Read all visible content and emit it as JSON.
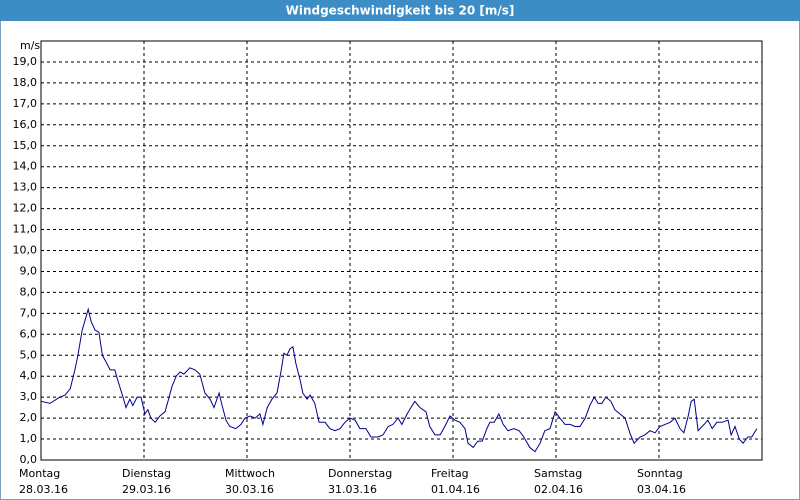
{
  "chart_data": {
    "type": "line",
    "title": "Windgeschwindigkeit bis 20 [m/s]",
    "y_label": "m/s",
    "xlim": [
      0,
      168
    ],
    "ylim": [
      0,
      20
    ],
    "xticks": [
      {
        "value": 0,
        "label": [
          "Montag",
          "28.03.16"
        ]
      },
      {
        "value": 24,
        "label": [
          "Dienstag",
          "29.03.16"
        ]
      },
      {
        "value": 48,
        "label": [
          "Mittwoch",
          "30.03.16"
        ]
      },
      {
        "value": 72,
        "label": [
          "Donnerstag",
          "31.03.16"
        ]
      },
      {
        "value": 96,
        "label": [
          "Freitag",
          "01.04.16"
        ]
      },
      {
        "value": 120,
        "label": [
          "Samstag",
          "02.04.16"
        ]
      },
      {
        "value": 144,
        "label": [
          "Sonntag",
          "03.04.16"
        ]
      }
    ],
    "yticks": [
      {
        "value": 0,
        "label": "0,0"
      },
      {
        "value": 1,
        "label": "1,0"
      },
      {
        "value": 2,
        "label": "2,0"
      },
      {
        "value": 3,
        "label": "3,0"
      },
      {
        "value": 4,
        "label": "4,0"
      },
      {
        "value": 5,
        "label": "5,0"
      },
      {
        "value": 6,
        "label": "6,0"
      },
      {
        "value": 7,
        "label": "7,0"
      },
      {
        "value": 8,
        "label": "8,0"
      },
      {
        "value": 9,
        "label": "9,0"
      },
      {
        "value": 10,
        "label": "10,0"
      },
      {
        "value": 11,
        "label": "11,0"
      },
      {
        "value": 12,
        "label": "12,0"
      },
      {
        "value": 13,
        "label": "13,0"
      },
      {
        "value": 14,
        "label": "14,0"
      },
      {
        "value": 15,
        "label": "15,0"
      },
      {
        "value": 16,
        "label": "16,0"
      },
      {
        "value": 17,
        "label": "17,0"
      },
      {
        "value": 18,
        "label": "18,0"
      },
      {
        "value": 19,
        "label": "19,0"
      }
    ],
    "grid": true,
    "color": "#00008b",
    "x": [
      0,
      2.1,
      4.4,
      5.6,
      6.8,
      7.9,
      8.6,
      9.6,
      11.0,
      11.7,
      12.6,
      13.5,
      14.3,
      15.1,
      16.1,
      17.2,
      17.9,
      19.1,
      19.8,
      20.7,
      21.4,
      22.4,
      23.3,
      24.2,
      24.9,
      25.6,
      26.6,
      27.7,
      28.9,
      29.6,
      30.5,
      31.5,
      32.4,
      33.3,
      34.7,
      35.9,
      37.0,
      38.2,
      39.4,
      40.3,
      41.5,
      42.2,
      43.1,
      44.0,
      45.4,
      46.6,
      47.5,
      48.7,
      49.9,
      51.0,
      51.7,
      52.7,
      53.8,
      55.0,
      55.9,
      56.6,
      57.3,
      58.0,
      58.7,
      59.4,
      60.4,
      61.0,
      62.0,
      62.7,
      63.8,
      64.8,
      66.2,
      67.3,
      68.5,
      69.7,
      70.8,
      72.0,
      73.2,
      74.3,
      75.7,
      76.9,
      78.5,
      79.7,
      80.9,
      82.0,
      83.2,
      84.1,
      85.3,
      86.2,
      87.1,
      88.3,
      89.7,
      90.6,
      91.8,
      93.0,
      94.1,
      95.3,
      96.5,
      97.6,
      98.8,
      99.5,
      100.7,
      101.8,
      102.8,
      103.9,
      104.6,
      105.6,
      106.7,
      107.7,
      108.8,
      110.2,
      111.4,
      112.5,
      113.9,
      115.1,
      116.3,
      117.4,
      118.6,
      119.8,
      120.9,
      122.1,
      123.3,
      124.4,
      125.6,
      126.8,
      127.9,
      128.9,
      129.8,
      130.7,
      131.6,
      132.8,
      133.7,
      134.9,
      136.1,
      137.2,
      138.2,
      139.6,
      140.7,
      141.9,
      143.1,
      144.2,
      145.4,
      146.6,
      147.7,
      148.9,
      149.8,
      150.8,
      151.5,
      152.2,
      153.1,
      154.5,
      155.4,
      156.4,
      157.5,
      158.7,
      160.1,
      160.8,
      161.7,
      162.7,
      163.6,
      164.7,
      165.6,
      166.8
    ],
    "values": [
      2.8,
      2.7,
      3.0,
      3.1,
      3.4,
      4.3,
      5.0,
      6.2,
      7.2,
      6.6,
      6.2,
      6.1,
      5.0,
      4.7,
      4.3,
      4.3,
      3.8,
      3.0,
      2.5,
      2.9,
      2.6,
      3.0,
      3.0,
      2.2,
      2.4,
      2.0,
      1.8,
      2.1,
      2.3,
      2.8,
      3.5,
      4.0,
      4.2,
      4.1,
      4.4,
      4.3,
      4.1,
      3.2,
      2.9,
      2.5,
      3.2,
      2.6,
      1.9,
      1.6,
      1.5,
      1.7,
      2.0,
      2.1,
      2.0,
      2.2,
      1.7,
      2.5,
      2.9,
      3.2,
      4.2,
      5.1,
      5.0,
      5.3,
      5.4,
      4.6,
      3.8,
      3.2,
      2.9,
      3.1,
      2.7,
      1.8,
      1.8,
      1.5,
      1.4,
      1.5,
      1.8,
      2.0,
      1.9,
      1.5,
      1.5,
      1.1,
      1.1,
      1.2,
      1.6,
      1.7,
      2.0,
      1.7,
      2.2,
      2.5,
      2.8,
      2.5,
      2.3,
      1.6,
      1.2,
      1.2,
      1.6,
      2.1,
      1.9,
      1.8,
      1.5,
      0.8,
      0.6,
      0.9,
      0.9,
      1.5,
      1.8,
      1.8,
      2.2,
      1.7,
      1.4,
      1.5,
      1.4,
      1.1,
      0.6,
      0.4,
      0.8,
      1.4,
      1.5,
      2.3,
      2.0,
      1.7,
      1.7,
      1.6,
      1.6,
      2.0,
      2.6,
      3.0,
      2.7,
      2.7,
      3.0,
      2.8,
      2.4,
      2.2,
      2.0,
      1.3,
      0.8,
      1.1,
      1.2,
      1.4,
      1.3,
      1.6,
      1.7,
      1.8,
      2.0,
      1.5,
      1.3,
      2.1,
      2.8,
      2.9,
      1.4,
      1.7,
      1.9,
      1.5,
      1.8,
      1.8,
      1.9,
      1.2,
      1.6,
      1.0,
      0.8,
      1.1,
      1.1,
      1.5
    ]
  }
}
